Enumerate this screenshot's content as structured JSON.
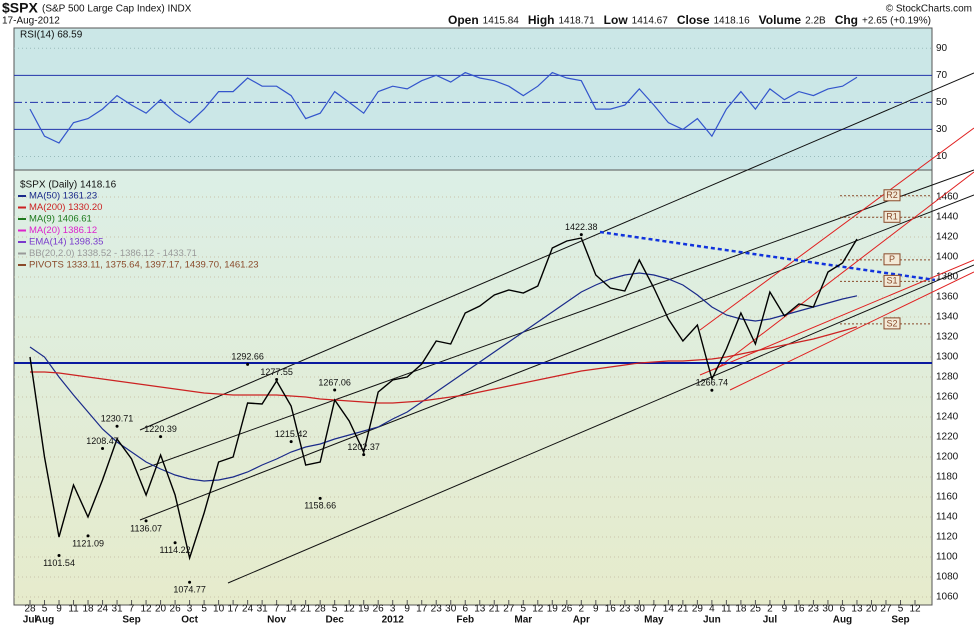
{
  "chart_data": {
    "type": "line",
    "title": "$SPX",
    "subtitle": "(S&P 500 Large Cap Index) INDX",
    "date": "17-Aug-2012",
    "credit": "© StockCharts.com",
    "quote": [
      {
        "label": "Open",
        "value": "1415.84"
      },
      {
        "label": "High",
        "value": "1418.71"
      },
      {
        "label": "Low",
        "value": "1414.67"
      },
      {
        "label": "Close",
        "value": "1418.16"
      },
      {
        "label": "Volume",
        "value": "2.2B"
      },
      {
        "label": "Chg",
        "value": "+2.65 (+0.19%)"
      }
    ],
    "x_groups": [
      {
        "month": "Jul",
        "days": [
          "28"
        ]
      },
      {
        "month": "Aug",
        "days": [
          "5",
          "9",
          "11",
          "18",
          "24",
          "31"
        ]
      },
      {
        "month": "Sep",
        "days": [
          "7",
          "12",
          "20",
          "26"
        ]
      },
      {
        "month": "Oct",
        "days": [
          "3",
          "5",
          "10",
          "17",
          "24",
          "31"
        ]
      },
      {
        "month": "Nov",
        "days": [
          "7",
          "14",
          "21",
          "28"
        ]
      },
      {
        "month": "Dec",
        "days": [
          "5",
          "12",
          "19",
          "26"
        ]
      },
      {
        "month": "2012",
        "days": [
          "3",
          "9",
          "17",
          "23",
          "30"
        ]
      },
      {
        "month": "Feb",
        "days": [
          "6",
          "13",
          "21",
          "27"
        ]
      },
      {
        "month": "Mar",
        "days": [
          "5",
          "12",
          "19",
          "26"
        ]
      },
      {
        "month": "Apr",
        "days": [
          "2",
          "9",
          "16",
          "23",
          "30"
        ]
      },
      {
        "month": "May",
        "days": [
          "7",
          "14",
          "21",
          "29"
        ]
      },
      {
        "month": "Jun",
        "days": [
          "4",
          "11",
          "18",
          "25"
        ]
      },
      {
        "month": "Jul",
        "days": [
          "2",
          "9",
          "16",
          "23",
          "30"
        ]
      },
      {
        "month": "Aug",
        "days": [
          "6",
          "13",
          "20",
          "27"
        ]
      },
      {
        "month": "Sep",
        "days": [
          "5",
          "12"
        ]
      }
    ],
    "rsi": {
      "label": "RSI(14) 68.59",
      "color": "#3355cc",
      "ylim": [
        0,
        105
      ],
      "yticks": [
        90,
        70,
        50,
        30,
        10
      ],
      "values": [
        45,
        25,
        20,
        35,
        38,
        45,
        55,
        48,
        42,
        52,
        42,
        35,
        45,
        58,
        58,
        68,
        62,
        62,
        55,
        38,
        42,
        58,
        50,
        42,
        58,
        62,
        60,
        66,
        70,
        65,
        72,
        68,
        66,
        62,
        55,
        62,
        72,
        68,
        66,
        45,
        45,
        48,
        60,
        48,
        35,
        30,
        38,
        25,
        45,
        58,
        45,
        60,
        52,
        58,
        55,
        60,
        62,
        68.59,
        null,
        null,
        null,
        null
      ]
    },
    "price": {
      "label": "$SPX (Daily) 1418.16",
      "color": "#000000",
      "ylim": [
        1052,
        1487
      ],
      "yticks": [
        1060,
        1080,
        1100,
        1120,
        1140,
        1160,
        1180,
        1200,
        1220,
        1240,
        1260,
        1280,
        1300,
        1320,
        1340,
        1360,
        1380,
        1400,
        1420,
        1440,
        1460
      ],
      "values": [
        1300,
        1200,
        1120,
        1172,
        1140,
        1177,
        1218,
        1198,
        1162,
        1202,
        1162,
        1099,
        1144,
        1195,
        1200,
        1254,
        1253,
        1276,
        1251,
        1192,
        1195,
        1257,
        1236,
        1205,
        1265,
        1277,
        1280,
        1293,
        1316,
        1313,
        1344,
        1351,
        1362,
        1367,
        1364,
        1371,
        1409,
        1416,
        1419,
        1382,
        1369,
        1366,
        1397,
        1369,
        1338,
        1316,
        1332,
        1278,
        1308,
        1344,
        1313,
        1365,
        1341,
        1353,
        1350,
        1385,
        1394,
        1418,
        null,
        null,
        null,
        null
      ],
      "series": [
        {
          "name": "MA(50) 1361.23",
          "color": "#1a2a8a",
          "values": [
            1310,
            1300,
            1280,
            1262,
            1245,
            1228,
            1215,
            1205,
            1195,
            1188,
            1182,
            1178,
            1176,
            1177,
            1180,
            1185,
            1192,
            1198,
            1205,
            1210,
            1213,
            1218,
            1222,
            1226,
            1230,
            1238,
            1245,
            1255,
            1265,
            1275,
            1285,
            1295,
            1305,
            1315,
            1325,
            1335,
            1345,
            1355,
            1365,
            1372,
            1378,
            1382,
            1384,
            1382,
            1378,
            1372,
            1362,
            1350,
            1342,
            1338,
            1336,
            1338,
            1342,
            1346,
            1350,
            1354,
            1358,
            1361.23,
            null,
            null,
            null,
            null
          ]
        },
        {
          "name": "MA(200) 1330.20",
          "color": "#cc2222",
          "values": [
            1285,
            1285,
            1284,
            1282,
            1280,
            1278,
            1276,
            1274,
            1272,
            1270,
            1268,
            1266,
            1264,
            1263,
            1262,
            1262,
            1262,
            1262,
            1261,
            1260,
            1258,
            1257,
            1256,
            1255,
            1254,
            1254,
            1255,
            1256,
            1258,
            1260,
            1262,
            1265,
            1268,
            1271,
            1274,
            1277,
            1280,
            1283,
            1286,
            1288,
            1290,
            1292,
            1294,
            1295,
            1296,
            1296,
            1297,
            1298,
            1300,
            1303,
            1306,
            1309,
            1312,
            1315,
            1318,
            1322,
            1326,
            1330.2,
            null,
            null,
            null,
            null
          ]
        }
      ],
      "indicators": [
        {
          "name": "MA(9) 1406.61",
          "color": "#1e7a1e"
        },
        {
          "name": "MA(20) 1386.12",
          "color": "#dd22cc"
        },
        {
          "name": "EMA(14) 1398.35",
          "color": "#7a3acc"
        },
        {
          "name": "BB(20,2.0) 1338.52 - 1386.12 - 1433.71",
          "color": "#999999"
        },
        {
          "name": "PIVOTS 1333.11, 1375.64, 1397.17, 1439.70, 1461.23",
          "color": "#8a4a2a"
        }
      ],
      "pivots": {
        "labels": [
          "S2",
          "S1",
          "P",
          "R1",
          "R2"
        ],
        "values": [
          1333.11,
          1375.64,
          1397.17,
          1439.7,
          1461.23
        ]
      },
      "support": 1294,
      "annotations": [
        {
          "label": "1422.38",
          "value": 1422.38
        },
        {
          "label": "1292.66",
          "value": 1292.66
        },
        {
          "label": "1277.55",
          "value": 1277.55
        },
        {
          "label": "1267.06",
          "value": 1267.06
        },
        {
          "label": "1230.71",
          "value": 1230.71
        },
        {
          "label": "1220.39",
          "value": 1220.39
        },
        {
          "label": "1208.47",
          "value": 1208.47
        },
        {
          "label": "1215.42",
          "value": 1215.42
        },
        {
          "label": "1202.37",
          "value": 1202.37
        },
        {
          "label": "1158.66",
          "value": 1158.66
        },
        {
          "label": "1136.07",
          "value": 1136.07
        },
        {
          "label": "1121.09",
          "value": 1121.09
        },
        {
          "label": "1114.22",
          "value": 1114.22
        },
        {
          "label": "1101.54",
          "value": 1101.54
        },
        {
          "label": "1074.77",
          "value": 1074.77
        },
        {
          "label": "1266.74",
          "value": 1266.74
        }
      ]
    }
  }
}
